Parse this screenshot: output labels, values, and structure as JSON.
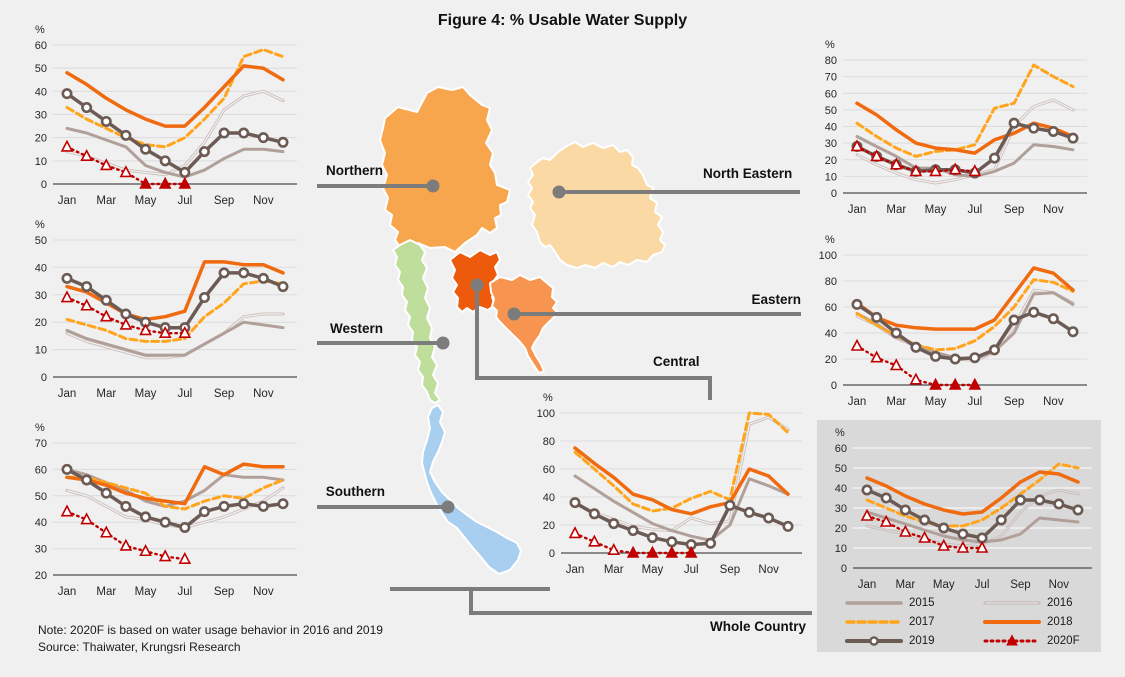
{
  "title": "Figure 4: % Usable Water Supply",
  "notes": {
    "line1": "Note: 2020F is based on water usage behavior in 2016 and 2019",
    "line2": "Source: Thaiwater, Krungsri Research"
  },
  "map": {
    "regions": [
      {
        "id": "northern",
        "label": "Northern",
        "color": "#F8A64E"
      },
      {
        "id": "north-eastern",
        "label": "North Eastern",
        "color": "#FAD9A5"
      },
      {
        "id": "central",
        "label": "Central",
        "color": "#EE5A0B"
      },
      {
        "id": "eastern",
        "label": "Eastern",
        "color": "#F79550"
      },
      {
        "id": "western",
        "label": "Western",
        "color": "#BFDD9B"
      },
      {
        "id": "southern",
        "label": "Southern",
        "color": "#A8CEF0"
      },
      {
        "id": "whole-country",
        "label": "Whole Country",
        "color": "#D9D9D9"
      }
    ]
  },
  "legend": {
    "items": [
      "2015",
      "2016",
      "2017",
      "2018",
      "2019",
      "2020F"
    ]
  },
  "series_colors": {
    "2015": "#B1A09A",
    "2016": "#CBBDB9",
    "2017": "#FFA41C",
    "2018": "#F06A10",
    "2019": "#6C5B54",
    "2020F": "#C00000"
  },
  "chart_data": [
    {
      "id": "northern",
      "type": "line",
      "ylabel": "%",
      "ymin": 0,
      "ymax": 60,
      "ystep": 10,
      "months": [
        "Jan",
        "Feb",
        "Mar",
        "Apr",
        "May",
        "Jun",
        "Jul",
        "Aug",
        "Sep",
        "Oct",
        "Nov",
        "Dec"
      ],
      "x_labels": [
        "Jan",
        "Mar",
        "May",
        "Jul",
        "Sep",
        "Nov"
      ],
      "series": [
        {
          "name": "2015",
          "values": [
            24,
            22,
            19,
            16,
            8,
            5,
            3,
            6,
            11,
            15,
            15,
            14
          ]
        },
        {
          "name": "2016",
          "values": [
            14,
            12,
            9,
            6,
            5,
            4,
            8,
            18,
            32,
            38,
            40,
            36
          ]
        },
        {
          "name": "2017",
          "values": [
            33,
            28,
            24,
            20,
            17,
            16,
            20,
            28,
            37,
            55,
            58,
            55
          ]
        },
        {
          "name": "2018",
          "values": [
            48,
            43,
            37,
            32,
            28,
            25,
            25,
            33,
            42,
            51,
            50,
            45
          ]
        },
        {
          "name": "2019",
          "values": [
            39,
            33,
            27,
            21,
            15,
            10,
            5,
            14,
            22,
            22,
            20,
            18
          ]
        },
        {
          "name": "2020F",
          "values": [
            16,
            12,
            8,
            5,
            0,
            0,
            0
          ]
        }
      ]
    },
    {
      "id": "western",
      "type": "line",
      "ylabel": "%",
      "ymin": 0,
      "ymax": 50,
      "ystep": 10,
      "months": [
        "Jan",
        "Feb",
        "Mar",
        "Apr",
        "May",
        "Jun",
        "Jul",
        "Aug",
        "Sep",
        "Oct",
        "Nov",
        "Dec"
      ],
      "x_labels": [
        "Jan",
        "Mar",
        "May",
        "Jul",
        "Sep",
        "Nov"
      ],
      "series": [
        {
          "name": "2015",
          "values": [
            17,
            14,
            12,
            10,
            8,
            8,
            8,
            12,
            16,
            20,
            19,
            18
          ]
        },
        {
          "name": "2016",
          "values": [
            16,
            13,
            11,
            9,
            7,
            7,
            8,
            12,
            16,
            22,
            23,
            23
          ]
        },
        {
          "name": "2017",
          "values": [
            21,
            19,
            17,
            14,
            13,
            13,
            14,
            22,
            27,
            34,
            35,
            34
          ]
        },
        {
          "name": "2018",
          "values": [
            33,
            31,
            27,
            23,
            21,
            22,
            24,
            42,
            42,
            41,
            41,
            38
          ]
        },
        {
          "name": "2019",
          "values": [
            36,
            33,
            28,
            23,
            20,
            18,
            18,
            29,
            38,
            38,
            36,
            33
          ]
        },
        {
          "name": "2020F",
          "values": [
            29,
            26,
            22,
            19,
            17,
            16,
            16
          ]
        }
      ]
    },
    {
      "id": "southern",
      "type": "line",
      "ylabel": "%",
      "ymin": 20,
      "ymax": 70,
      "ystep": 10,
      "months": [
        "Jan",
        "Feb",
        "Mar",
        "Apr",
        "May",
        "Jun",
        "Jul",
        "Aug",
        "Sep",
        "Oct",
        "Nov",
        "Dec"
      ],
      "x_labels": [
        "Jan",
        "Mar",
        "May",
        "Jul",
        "Sep",
        "Nov"
      ],
      "series": [
        {
          "name": "2015",
          "values": [
            60,
            58,
            55,
            52,
            48,
            46,
            48,
            52,
            58,
            57,
            57,
            56
          ]
        },
        {
          "name": "2016",
          "values": [
            52,
            50,
            46,
            42,
            41,
            39,
            38,
            40,
            42,
            45,
            48,
            53
          ]
        },
        {
          "name": "2017",
          "values": [
            57,
            57,
            55,
            53,
            51,
            46,
            45,
            48,
            50,
            49,
            53,
            56
          ]
        },
        {
          "name": "2018",
          "values": [
            57,
            56,
            54,
            51,
            49,
            48,
            47,
            61,
            58,
            62,
            61,
            61
          ]
        },
        {
          "name": "2019",
          "values": [
            60,
            56,
            51,
            46,
            42,
            40,
            38,
            44,
            46,
            47,
            46,
            47
          ]
        },
        {
          "name": "2020F",
          "values": [
            44,
            41,
            36,
            31,
            29,
            27,
            26
          ]
        }
      ]
    },
    {
      "id": "north-eastern",
      "type": "line",
      "ylabel": "%",
      "ymin": 0,
      "ymax": 80,
      "ystep": 10,
      "months": [
        "Jan",
        "Feb",
        "Mar",
        "Apr",
        "May",
        "Jun",
        "Jul",
        "Aug",
        "Sep",
        "Oct",
        "Nov",
        "Dec"
      ],
      "x_labels": [
        "Jan",
        "Mar",
        "May",
        "Jul",
        "Sep",
        "Nov"
      ],
      "series": [
        {
          "name": "2015",
          "values": [
            34,
            28,
            22,
            15,
            15,
            11,
            10,
            13,
            18,
            29,
            28,
            26
          ]
        },
        {
          "name": "2016",
          "values": [
            23,
            17,
            12,
            8,
            6,
            8,
            11,
            14,
            40,
            52,
            56,
            50
          ]
        },
        {
          "name": "2017",
          "values": [
            42,
            34,
            27,
            22,
            25,
            26,
            29,
            51,
            54,
            77,
            70,
            64
          ]
        },
        {
          "name": "2018",
          "values": [
            54,
            47,
            38,
            30,
            27,
            26,
            24,
            32,
            36,
            42,
            39,
            34
          ]
        },
        {
          "name": "2019",
          "values": [
            28,
            22,
            17,
            13,
            14,
            14,
            12,
            21,
            42,
            39,
            37,
            33
          ]
        },
        {
          "name": "2020F",
          "values": [
            28,
            22,
            17,
            13,
            13,
            14,
            13
          ]
        }
      ]
    },
    {
      "id": "eastern",
      "type": "line",
      "ylabel": "%",
      "ymin": 0,
      "ymax": 100,
      "ystep": 20,
      "months": [
        "Jan",
        "Feb",
        "Mar",
        "Apr",
        "May",
        "Jun",
        "Jul",
        "Aug",
        "Sep",
        "Oct",
        "Nov",
        "Dec"
      ],
      "x_labels": [
        "Jan",
        "Mar",
        "May",
        "Jul",
        "Sep",
        "Nov"
      ],
      "series": [
        {
          "name": "2015",
          "values": [
            55,
            47,
            37,
            31,
            25,
            21,
            20,
            26,
            40,
            70,
            71,
            62
          ]
        },
        {
          "name": "2016",
          "values": [
            53,
            46,
            36,
            30,
            24,
            20,
            19,
            25,
            45,
            73,
            71,
            63
          ]
        },
        {
          "name": "2017",
          "values": [
            55,
            46,
            38,
            31,
            27,
            28,
            34,
            45,
            60,
            81,
            79,
            72
          ]
        },
        {
          "name": "2018",
          "values": [
            63,
            52,
            46,
            44,
            43,
            43,
            43,
            50,
            70,
            90,
            86,
            73
          ]
        },
        {
          "name": "2019",
          "values": [
            62,
            52,
            40,
            29,
            22,
            20,
            21,
            27,
            50,
            56,
            51,
            41
          ]
        },
        {
          "name": "2020F",
          "values": [
            30,
            21,
            15,
            4,
            0,
            0,
            0
          ]
        }
      ]
    },
    {
      "id": "central",
      "type": "line",
      "ylabel": "%",
      "ymin": 0,
      "ymax": 100,
      "ystep": 20,
      "months": [
        "Jan",
        "Feb",
        "Mar",
        "Apr",
        "May",
        "Jun",
        "Jul",
        "Aug",
        "Sep",
        "Oct",
        "Nov",
        "Dec"
      ],
      "x_labels": [
        "Jan",
        "Mar",
        "May",
        "Jul",
        "Sep",
        "Nov"
      ],
      "series": [
        {
          "name": "2015",
          "values": [
            55,
            46,
            37,
            29,
            21,
            16,
            12,
            9,
            20,
            53,
            48,
            42
          ]
        },
        {
          "name": "2016",
          "values": [
            35,
            29,
            24,
            19,
            17,
            16,
            25,
            21,
            23,
            92,
            97,
            88
          ]
        },
        {
          "name": "2017",
          "values": [
            72,
            60,
            48,
            35,
            30,
            32,
            39,
            44,
            38,
            100,
            99,
            86
          ]
        },
        {
          "name": "2018",
          "values": [
            75,
            64,
            54,
            42,
            38,
            31,
            28,
            33,
            36,
            60,
            55,
            42
          ]
        },
        {
          "name": "2019",
          "values": [
            36,
            28,
            21,
            16,
            11,
            8,
            6,
            7,
            34,
            29,
            25,
            19
          ]
        },
        {
          "name": "2020F",
          "values": [
            14,
            8,
            2,
            0,
            0,
            0,
            0
          ]
        }
      ]
    },
    {
      "id": "whole-country",
      "type": "line",
      "ylabel": "%",
      "ymin": 0,
      "ymax": 60,
      "ystep": 10,
      "background": "#D9D9D9",
      "grid": "#FFFFFF",
      "months": [
        "Jan",
        "Feb",
        "Mar",
        "Apr",
        "May",
        "Jun",
        "Jul",
        "Aug",
        "Sep",
        "Oct",
        "Nov",
        "Dec"
      ],
      "x_labels": [
        "Jan",
        "Mar",
        "May",
        "Jul",
        "Sep",
        "Nov"
      ],
      "series": [
        {
          "name": "2015",
          "values": [
            28,
            25,
            22,
            19,
            16,
            14,
            13,
            14,
            17,
            25,
            24,
            23
          ]
        },
        {
          "name": "2016",
          "values": [
            21,
            19,
            17,
            14,
            12,
            11,
            12,
            16,
            28,
            36,
            39,
            37
          ]
        },
        {
          "name": "2017",
          "values": [
            34,
            30,
            26,
            23,
            21,
            21,
            24,
            30,
            37,
            44,
            52,
            50
          ]
        },
        {
          "name": "2018",
          "values": [
            45,
            41,
            36,
            32,
            29,
            27,
            28,
            35,
            43,
            48,
            47,
            43
          ]
        },
        {
          "name": "2019",
          "values": [
            39,
            35,
            29,
            24,
            20,
            17,
            15,
            24,
            34,
            34,
            32,
            29
          ]
        },
        {
          "name": "2020F",
          "values": [
            26,
            23,
            18,
            15,
            11,
            10,
            10
          ]
        }
      ]
    }
  ]
}
